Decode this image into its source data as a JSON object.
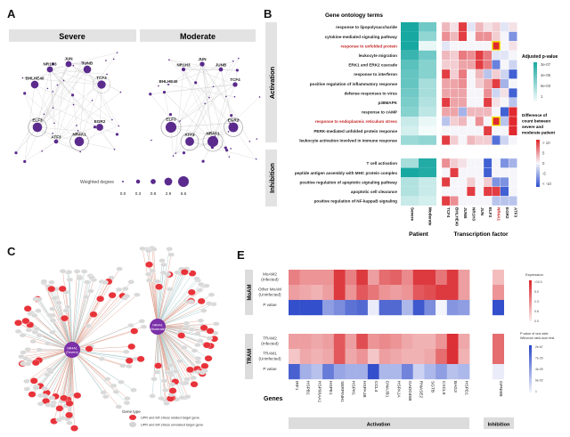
{
  "panels": {
    "a": "A",
    "b": "B",
    "c": "C",
    "e": "E"
  },
  "panel_a": {
    "facets": [
      "Severe",
      "Moderate"
    ],
    "severe_nodes": [
      {
        "name": "JUN",
        "degree": 1.2
      },
      {
        "name": "NR1H3",
        "degree": 1.2
      },
      {
        "name": "JUNB",
        "degree": 2.4
      },
      {
        "name": "BHLHE40",
        "degree": 2.4
      },
      {
        "name": "TCF4",
        "degree": 3.0
      },
      {
        "name": "ELF3",
        "degree": 4.2
      },
      {
        "name": "ATF3",
        "degree": 0.3
      },
      {
        "name": "NR4A1",
        "degree": 4.2
      },
      {
        "name": "EGR2",
        "degree": 1.8
      }
    ],
    "moderate_nodes": [
      {
        "name": "JUN",
        "degree": 0.5
      },
      {
        "name": "NR1H3",
        "degree": 0.2
      },
      {
        "name": "JUNB",
        "degree": 0.3
      },
      {
        "name": "BHLHE40",
        "degree": 0.05
      },
      {
        "name": "TCF4",
        "degree": 0.5
      },
      {
        "name": "ELF3",
        "degree": 6.0
      },
      {
        "name": "ATF3",
        "degree": 3.5
      },
      {
        "name": "NR4A1",
        "degree": 6.0
      },
      {
        "name": "EGR2",
        "degree": 4.5
      }
    ],
    "legend_title": "Weighted degree",
    "legend_values": [
      "0.0",
      "0.3",
      "0.8",
      "2.9",
      "6.6"
    ]
  },
  "panel_b": {
    "title": "Gene ontology terms",
    "groups": [
      "Activation",
      "Inhibition"
    ],
    "patient_columns": [
      "Severe",
      "Moderate"
    ],
    "tf_columns": [
      "TCF4",
      "BHLHE40",
      "JUNB",
      "NR1H3",
      "JUN",
      "ELF3",
      "NR4A1",
      "EGR2",
      "ATF3"
    ],
    "highlight_tf": "NR4A1",
    "patient_axis": "Patient",
    "tf_axis": "Transcription factor",
    "activation_rows": [
      {
        "term": "response to lipopolysaccharide",
        "p": [
          1.0,
          0.6
        ],
        "diff": [
          3,
          1,
          9,
          -1,
          3,
          1,
          2,
          -1,
          1
        ]
      },
      {
        "term": "cytokine-mediated signaling pathway",
        "p": [
          1.0,
          0.45
        ],
        "diff": [
          5,
          3,
          9,
          0,
          5,
          5,
          2,
          0,
          -6
        ]
      },
      {
        "term": "response to unfolded protein",
        "highlight": true,
        "p": [
          1.0,
          0.05
        ],
        "diff": [
          -1,
          0,
          0,
          0,
          0,
          0,
          10,
          0,
          1
        ],
        "boxed": 6
      },
      {
        "term": "leukocyte migration",
        "p": [
          0.85,
          0.6
        ],
        "diff": [
          3,
          2,
          6,
          5,
          9,
          6,
          -1,
          -1,
          0
        ]
      },
      {
        "term": "ERK1 and ERK2 cascade",
        "p": [
          0.7,
          0.5
        ],
        "diff": [
          2,
          2,
          4,
          4,
          9,
          6,
          -7,
          0,
          -2
        ]
      },
      {
        "term": "response to interferon",
        "p": [
          0.65,
          0.5
        ],
        "diff": [
          9,
          2,
          6,
          0,
          3,
          -3,
          2,
          -2,
          -9
        ]
      },
      {
        "term": "positive regulation of inflammatory response",
        "p": [
          0.65,
          0.35
        ],
        "diff": [
          4,
          4,
          5,
          0,
          2,
          4,
          9,
          -4,
          0
        ]
      },
      {
        "term": "defense responses to virus",
        "p": [
          0.6,
          0.35
        ],
        "diff": [
          4,
          4,
          4,
          0,
          0,
          5,
          -2,
          1,
          -9
        ]
      },
      {
        "term": "p38MAPK",
        "p": [
          0.55,
          0.3
        ],
        "diff": [
          9,
          4,
          4,
          0,
          0,
          9,
          1,
          0,
          -3
        ]
      },
      {
        "term": "response to cAMP",
        "p": [
          0.5,
          0.25
        ],
        "diff": [
          4,
          4,
          -4,
          3,
          3,
          3,
          0,
          -9,
          10
        ]
      },
      {
        "term": "response to endoplasmic reticulum stress",
        "highlight": true,
        "p": [
          0.2,
          0.05
        ],
        "diff": [
          -3,
          2,
          3,
          0,
          5,
          0,
          10,
          -3,
          10
        ],
        "boxed": 6
      },
      {
        "term": "PERK-mediated unfolded protein response",
        "p": [
          0.15,
          0.0
        ],
        "diff": [
          0,
          0,
          0,
          0,
          0,
          9,
          0,
          0,
          10
        ]
      },
      {
        "term": "leukocyte activation involved in immune response",
        "p": [
          0.4,
          0.45
        ],
        "diff": [
          9,
          2,
          0,
          3,
          2,
          2,
          -8,
          -2,
          0
        ]
      }
    ],
    "inhibition_rows": [
      {
        "term": "T cell activation",
        "p": [
          0.35,
          0.95
        ],
        "diff": [
          5,
          2,
          1,
          0,
          0,
          -9,
          0,
          -6,
          -4
        ]
      },
      {
        "term": "peptide antigen assembly with MHC protein complex",
        "p": [
          1.0,
          0.95
        ],
        "diff": [
          0,
          9,
          0,
          0,
          0,
          -9,
          0,
          0,
          0
        ]
      },
      {
        "term": "positive regulation of apoptotic signaling pathway",
        "p": [
          0.3,
          0.2
        ],
        "diff": [
          9,
          0,
          0,
          2,
          0,
          2,
          -6,
          -6,
          0
        ]
      },
      {
        "term": "apoptotic cell clearance",
        "p": [
          0.3,
          0.2
        ],
        "diff": [
          0,
          0,
          0,
          9,
          0,
          9,
          9,
          -9,
          0
        ]
      },
      {
        "term": "positive regulation of NF-kappaB signaling",
        "p": [
          0.2,
          0.15
        ],
        "diff": [
          9,
          5,
          0,
          0,
          0,
          0,
          -3,
          -3,
          -3
        ]
      }
    ],
    "legend_p_title": "Adjusted p-value",
    "legend_p_ticks": [
      "3e-07",
      "4e-05",
      "6e-03",
      "1"
    ],
    "legend_diff_title": [
      "Difference of",
      "count between",
      "severe and",
      "moderate patient"
    ],
    "legend_diff_ticks": [
      "> 10",
      "5",
      "0",
      "-5",
      "< -10"
    ]
  },
  "panel_c": {
    "hubs": [
      [
        "NR4A1",
        "(Severe)"
      ],
      [
        "NR4A1",
        "(Moderate)"
      ]
    ],
    "legend_title": "Gene type",
    "legend_items": [
      "UPR and ER stress related target gene",
      "UPR and ER stress unrelated target gene"
    ],
    "colors": {
      "related": "#e8333a",
      "unrelated": "#d4d4d4",
      "hub": "#7b2fa8"
    }
  },
  "panel_e": {
    "genes": [
      "IRF1",
      "HSPB1",
      "HSP90AA1",
      "HSPE1",
      "SERPINH1",
      "HSPH1",
      "HSPA1B",
      "CCL4",
      "DNAJB1",
      "HSPA1A",
      "GADD45B",
      "RNASE2",
      "SGTB",
      "CXCL8",
      "BAG3",
      "HSPD1"
    ],
    "inhibition_gene": "GPNMB",
    "genes_label": "Genes",
    "groups": [
      "Activation",
      "Inhibition"
    ],
    "blocks": [
      {
        "name": "MoAM",
        "rows": [
          {
            "label": [
              "MoAM2",
              "(Infected)"
            ],
            "type": "expr",
            "values": [
              0.55,
              0.45,
              0.45,
              0.45,
              0.9,
              0.55,
              0.9,
              0.4,
              0.65,
              0.7,
              0.5,
              0.9,
              0.9,
              0.6,
              0.9,
              0.4
            ],
            "inh": 0.25
          },
          {
            "label": [
              "Other MoAM",
              "(Uninfected)"
            ],
            "type": "expr",
            "values": [
              0.4,
              0.35,
              0.3,
              0.4,
              0.9,
              0.45,
              0.75,
              0.6,
              0.45,
              0.4,
              0.45,
              0.75,
              0.8,
              0.9,
              0.9,
              0.4
            ],
            "inh": 0.45
          },
          {
            "label": [
              "P value"
            ],
            "type": "p",
            "values": [
              0.95,
              0.95,
              0.95,
              0.5,
              0.6,
              0.75,
              0.8,
              0.05,
              0.8,
              0.8,
              0.35,
              0.9,
              0.6,
              0.0,
              0.55,
              0.5
            ],
            "inh": 0.95
          }
        ]
      },
      {
        "name": "TRAM",
        "rows": [
          {
            "label": [
              "TRAM2",
              "(Infected)"
            ],
            "type": "expr",
            "values": [
              0.4,
              0.4,
              0.35,
              0.4,
              0.75,
              0.4,
              0.8,
              0.45,
              0.5,
              0.45,
              0.35,
              0.3,
              0.3,
              0.45,
              0.95,
              0.35
            ],
            "inh": 0.65
          },
          {
            "label": [
              "TRAM1",
              "(Uninfected)"
            ],
            "type": "expr",
            "values": [
              0.2,
              0.35,
              0.3,
              0.35,
              0.75,
              0.35,
              0.45,
              0.2,
              0.4,
              0.35,
              0.3,
              0.3,
              0.35,
              0.65,
              0.95,
              0.3
            ],
            "inh": 0.65
          },
          {
            "label": [
              "P value"
            ],
            "type": "p",
            "values": [
              0.85,
              0.4,
              0.3,
              0.7,
              0.45,
              0.4,
              0.4,
              0.95,
              0.35,
              0.35,
              0.65,
              0.2,
              0.35,
              0.5,
              0.3,
              0.35
            ],
            "inh": 0.05
          }
        ]
      }
    ],
    "legend_expr_title": "Expression",
    "legend_expr_ticks": [
      ">10.0",
      "5.0",
      "2.3",
      "0.8",
      "0.0"
    ],
    "legend_p_title": [
      "P value of one-side",
      "Wilcoxon rank-sum test"
    ],
    "legend_p_ticks": [
      "2e-67",
      "7e-29",
      "4e-09",
      "9e-02",
      "1"
    ]
  },
  "colors": {
    "teal": "#18a8a2",
    "red": "#e0282e",
    "blue": "#2c4fcf",
    "purple": "#5a2a8c",
    "highlight": "#f2e400",
    "highlight_text": "#c62828"
  }
}
